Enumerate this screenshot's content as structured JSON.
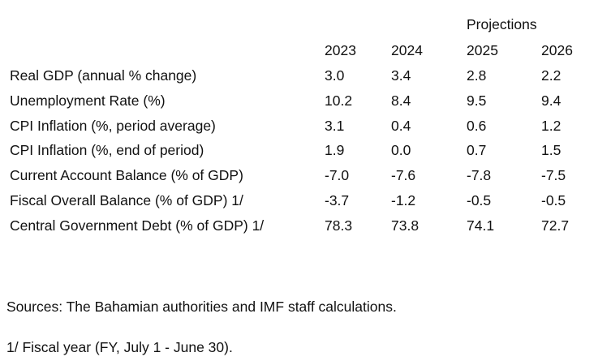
{
  "table": {
    "projections_label": "Projections",
    "years": [
      "2023",
      "2024",
      "2025",
      "2026"
    ],
    "rows": [
      {
        "label": "Real GDP (annual % change)",
        "values": [
          "3.0",
          "3.4",
          "2.8",
          "2.2"
        ]
      },
      {
        "label": "Unemployment Rate (%)",
        "values": [
          "10.2",
          "8.4",
          "9.5",
          "9.4"
        ]
      },
      {
        "label": "CPI Inflation (%, period average)",
        "values": [
          "3.1",
          "0.4",
          "0.6",
          "1.2"
        ]
      },
      {
        "label": "CPI Inflation (%, end of period)",
        "values": [
          "1.9",
          "0.0",
          "0.7",
          "1.5"
        ]
      },
      {
        "label": "Current Account Balance (% of GDP)",
        "values": [
          "-7.0",
          "-7.6",
          "-7.8",
          "-7.5"
        ]
      },
      {
        "label": "Fiscal Overall Balance (% of GDP) 1/",
        "values": [
          "-3.7",
          "-1.2",
          "-0.5",
          "-0.5"
        ]
      },
      {
        "label": "Central Government Debt (% of GDP) 1/",
        "values": [
          "78.3",
          "73.8",
          "74.1",
          "72.7"
        ]
      }
    ]
  },
  "notes": {
    "sources": "Sources: The Bahamian authorities and IMF staff calculations.",
    "footnote": "1/ Fiscal year (FY, July 1 - June 30)."
  }
}
